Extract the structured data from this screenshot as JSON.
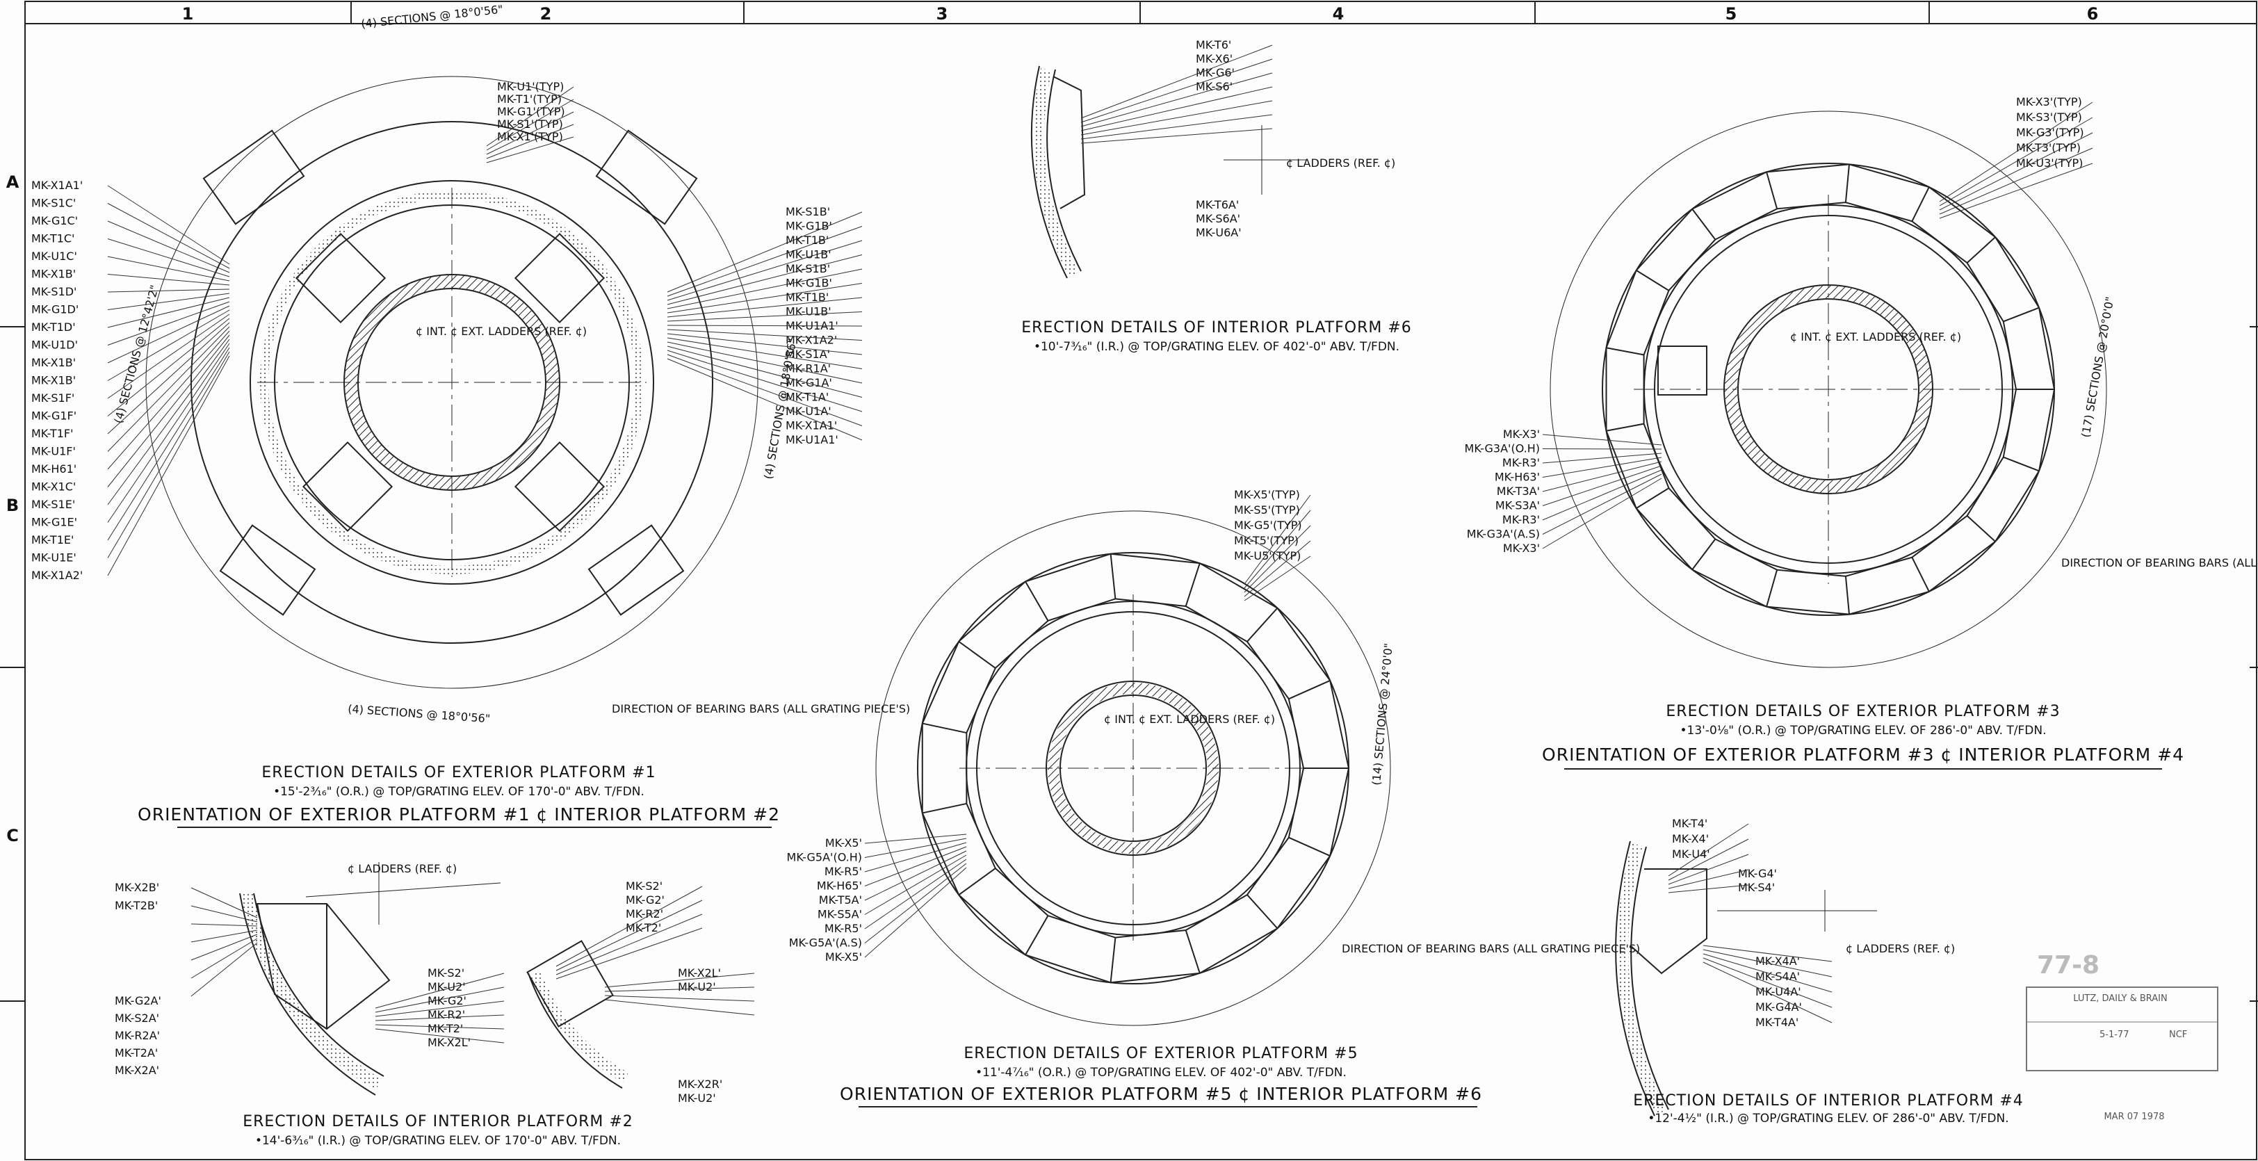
{
  "grid": {
    "columns": [
      "1",
      "2",
      "3",
      "4",
      "5",
      "6"
    ],
    "rows": [
      "A",
      "B",
      "C"
    ]
  },
  "panel1": {
    "dim_top": "(4) SECTIONS @ 18°0'56\"",
    "dim_bottom": "(4) SECTIONS @ 18°0'56\"",
    "dim_left": "(4) SECTIONS @ 12°42'2\"",
    "dim_right": "(4) SECTIONS @ 18°0'56\"",
    "center_label": "¢ INT. ¢ EXT. LADDERS (REF. ¢)",
    "direction_note": "DIRECTION OF BEARING BARS (ALL GRATING PIECE'S)",
    "marks_left": [
      "MK-X1A1'",
      "MK-S1C'",
      "MK-G1C'",
      "MK-T1C'",
      "MK-U1C'",
      "MK-X1B'",
      "MK-S1D'",
      "MK-G1D'",
      "MK-T1D'",
      "MK-U1D'",
      "MK-X1B'",
      "MK-X1B'",
      "MK-S1F'",
      "MK-G1F'",
      "MK-T1F'",
      "MK-U1F'",
      "MK-H61'",
      "MK-X1C'",
      "MK-S1E'",
      "MK-G1E'",
      "MK-T1E'",
      "MK-U1E'",
      "MK-X1A2'"
    ],
    "marks_top": [
      "MK-U1'(TYP)",
      "MK-T1'(TYP)",
      "MK-G1'(TYP)",
      "MK-S1'(TYP)",
      "MK-X1'(TYP)"
    ],
    "marks_right": [
      "MK-S1B'",
      "MK-G1B'",
      "MK-T1B'",
      "MK-U1B'",
      "MK-S1B'",
      "MK-G1B'",
      "MK-T1B'",
      "MK-U1B'",
      "MK-U1A1'",
      "MK-X1A2'",
      "MK-S1A'",
      "MK-R1A'",
      "MK-G1A'",
      "MK-T1A'",
      "MK-U1A'",
      "MK-X1A1'",
      "MK-U1A1'"
    ],
    "title": "ERECTION DETAILS OF EXTERIOR PLATFORM #1",
    "subtitle": "•15'-2³⁄₁₆\" (O.R.) @ TOP/GRATING ELEV. OF 170'-0\" ABV. T/FDN.",
    "orientation": "ORIENTATION OF EXTERIOR PLATFORM #1 ¢ INTERIOR PLATFORM #2"
  },
  "panel2": {
    "ladder_note": "¢ LADDERS (REF. ¢)",
    "marks_left": [
      "MK-X2B'",
      "MK-T2B'",
      "MK-G2A'",
      "MK-S2A'",
      "MK-R2A'",
      "MK-T2A'",
      "MK-X2A'"
    ],
    "marks_mid": [
      "MK-S2'",
      "MK-U2'",
      "MK-G2'",
      "MK-R2'",
      "MK-T2'",
      "MK-X2L'"
    ],
    "marks_right_top": [
      "MK-S2'",
      "MK-G2'",
      "MK-R2'",
      "MK-T2'"
    ],
    "marks_right": [
      "MK-X2L'",
      "MK-U2'",
      "MK-X2R'",
      "MK-U2'"
    ],
    "title": "ERECTION DETAILS OF INTERIOR PLATFORM #2",
    "subtitle": "•14'-6³⁄₁₆\" (I.R.) @ TOP/GRATING ELEV. OF 170'-0\" ABV. T/FDN."
  },
  "panel6": {
    "marks": [
      "MK-T6'",
      "MK-X6'",
      "MK-G6'",
      "MK-S6'",
      "MK-T6A'",
      "MK-S6A'",
      "MK-U6A'"
    ],
    "ladder_note": "¢ LADDERS (REF. ¢)",
    "title": "ERECTION DETAILS OF INTERIOR PLATFORM #6",
    "subtitle": "•10'-7³⁄₁₆\" (I.R.) @ TOP/GRATING ELEV. OF 402'-0\" ABV. T/FDN."
  },
  "panel5": {
    "marks_top": [
      "MK-X5'(TYP)",
      "MK-S5'(TYP)",
      "MK-G5'(TYP)",
      "MK-T5'(TYP)",
      "MK-U5'(TYP)"
    ],
    "marks_left": [
      "MK-X5'",
      "MK-G5A'(O.H)",
      "MK-R5'",
      "MK-H65'",
      "MK-T5A'",
      "MK-S5A'",
      "MK-R5'",
      "MK-G5A'(A.S)",
      "MK-X5'"
    ],
    "center_label": "¢ INT. ¢ EXT. LADDERS (REF. ¢)",
    "dim_right": "(14) SECTIONS @ 24°0'0\"",
    "direction_note": "DIRECTION OF BEARING BARS (ALL GRATING PIECE'S)",
    "title": "ERECTION DETAILS OF EXTERIOR PLATFORM #5",
    "subtitle": "•11'-4⁷⁄₁₆\" (O.R.) @ TOP/GRATING ELEV. OF 402'-0\" ABV. T/FDN.",
    "orientation": "ORIENTATION OF EXTERIOR PLATFORM #5 ¢ INTERIOR PLATFORM #6"
  },
  "panel3": {
    "marks_top": [
      "MK-X3'(TYP)",
      "MK-S3'(TYP)",
      "MK-G3'(TYP)",
      "MK-T3'(TYP)",
      "MK-U3'(TYP)"
    ],
    "marks_left": [
      "MK-X3'",
      "MK-G3A'(O.H)",
      "MK-R3'",
      "MK-H63'",
      "MK-T3A'",
      "MK-S3A'",
      "MK-R3'",
      "MK-G3A'(A.S)",
      "MK-X3'"
    ],
    "center_label": "¢ INT. ¢ EXT. LADDERS (REF. ¢)",
    "dim_right": "(17) SECTIONS @ 20°0'0\"",
    "direction_note": "DIRECTION OF BEARING BARS (ALL GRATING PIECE'S)",
    "title": "ERECTION DETAILS OF EXTERIOR PLATFORM #3",
    "subtitle": "•13'-0⅛\" (O.R.) @ TOP/GRATING ELEV. OF 286'-0\" ABV. T/FDN.",
    "orientation": "ORIENTATION OF EXTERIOR PLATFORM #3 ¢ INTERIOR PLATFORM #4"
  },
  "panel4": {
    "marks_top": [
      "MK-T4'",
      "MK-X4'",
      "MK-U4'",
      "MK-G4'",
      "MK-S4'"
    ],
    "marks_bottom": [
      "MK-X4A'",
      "MK-S4A'",
      "MK-U4A'",
      "MK-G4A'",
      "MK-T4A'"
    ],
    "ladder_note": "¢ LADDERS (REF. ¢)",
    "title": "ERECTION DETAILS OF INTERIOR PLATFORM #4",
    "subtitle": "•12'-4½\" (I.R.) @ TOP/GRATING ELEV. OF 286'-0\" ABV. T/FDN."
  },
  "stamp": {
    "number": "77-8",
    "company": "LUTZ, DAILY & BRAIN",
    "date": "5-1-77",
    "initials": "NCF",
    "footer": "MAR 07 1978"
  }
}
